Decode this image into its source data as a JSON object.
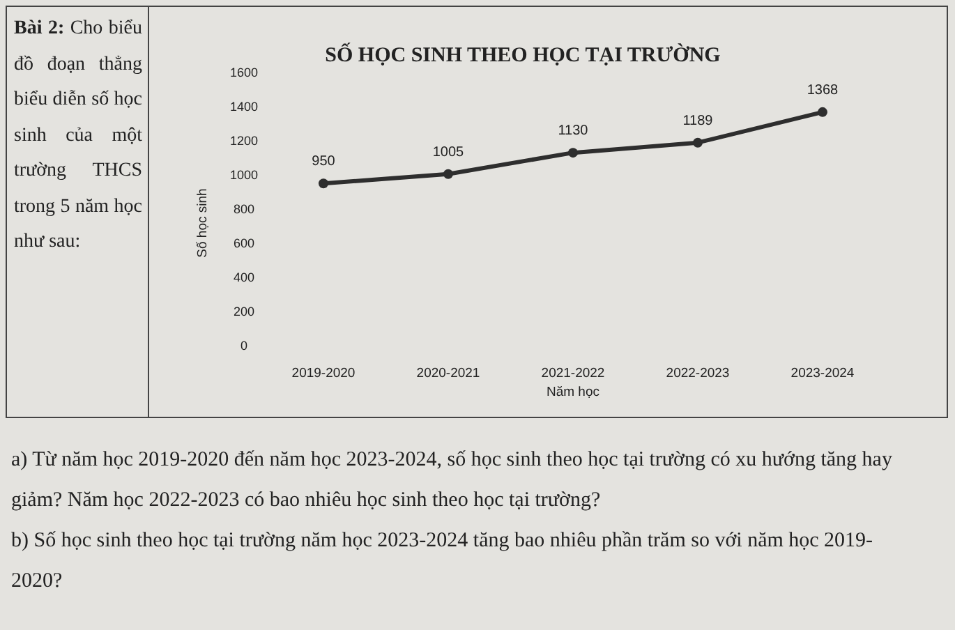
{
  "chart_data": {
    "type": "line",
    "title": "SỐ HỌC SINH THEO HỌC TẠI TRƯỜNG",
    "xlabel": "Năm học",
    "ylabel": "Số học sinh",
    "categories": [
      "2019-2020",
      "2020-2021",
      "2021-2022",
      "2022-2023",
      "2023-2024"
    ],
    "series": [
      {
        "color": "#2e2e2e",
        "values": [
          950,
          1005,
          1130,
          1189,
          1368
        ]
      }
    ],
    "ylim": [
      0,
      1600
    ],
    "yticks": [
      0,
      200,
      400,
      600,
      800,
      1000,
      1200,
      1400,
      1600
    ],
    "marker": "circle",
    "line_style": "solid",
    "data_labels": true,
    "annotations": [
      "Bài 2:",
      "Cho biểu đồ đoạn thẳng biểu diễn số học sinh của một trường THCS trong 5 năm học như sau:",
      "a) Từ năm học 2019-2020 đến năm học 2023-2024, số học sinh theo học tại trường có xu hướng tăng hay giảm? Năm học 2022-2023 có bao nhiêu học sinh theo học tại trường?",
      "b) Số học sinh theo học tại trường năm học 2023-2024 tăng bao nhiêu phần trăm so với năm học 2019-2020?"
    ]
  }
}
